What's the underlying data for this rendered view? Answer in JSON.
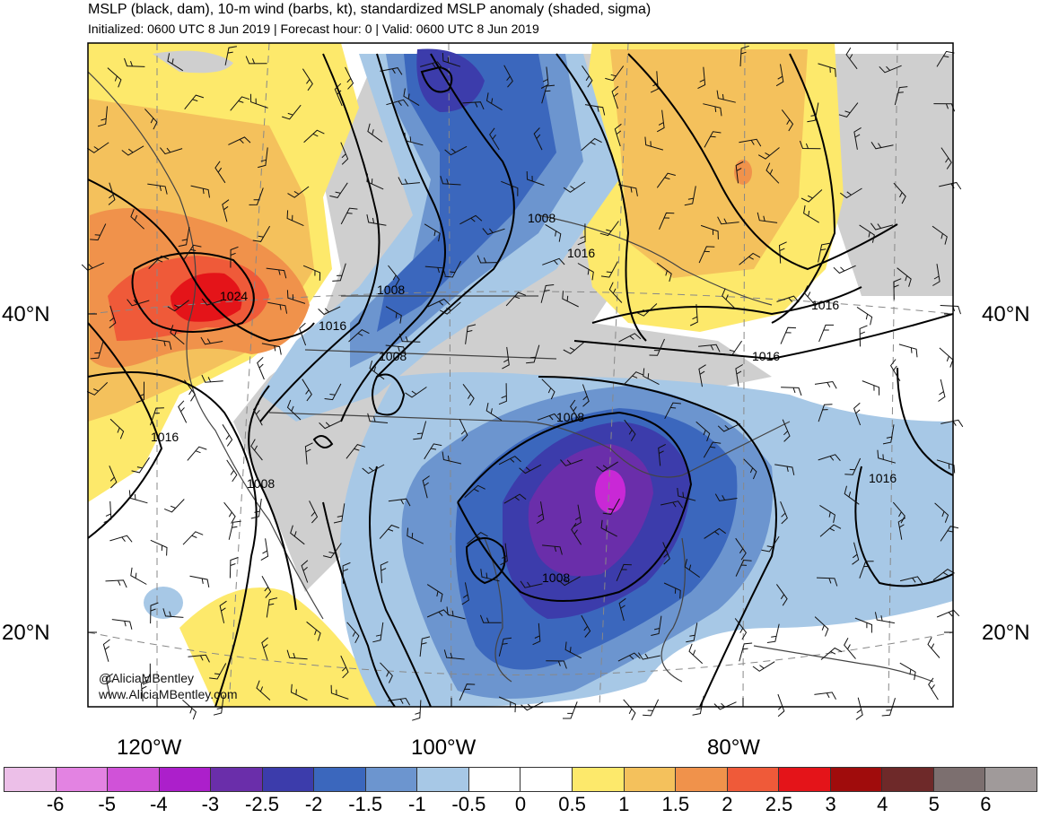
{
  "header": {
    "title": "MSLP (black, dam), 10-m wind (barbs, kt), standardized MSLP anomaly (shaded, sigma)",
    "subtitle": "Initialized: 0600 UTC 8 Jun 2019 | Forecast hour: 0 | Valid: 0600 UTC 8 Jun 2019"
  },
  "axes": {
    "lat_labels": [
      "40°N",
      "20°N"
    ],
    "lon_labels": [
      "120°W",
      "100°W",
      "80°W"
    ]
  },
  "isobar_labels": [
    {
      "text": "1024"
    },
    {
      "text": "1016"
    },
    {
      "text": "1008"
    },
    {
      "text": "1008"
    },
    {
      "text": "1016"
    },
    {
      "text": "1016"
    },
    {
      "text": "1016"
    },
    {
      "text": "1016"
    },
    {
      "text": "1008"
    },
    {
      "text": "1008"
    },
    {
      "text": "1008"
    },
    {
      "text": "1016"
    },
    {
      "text": "1008"
    }
  ],
  "credits": {
    "handle": "@AliciaMBentley",
    "website": "www.AliciaMBentley.com"
  },
  "colorbar": {
    "colors": [
      "#ecbfe8",
      "#e383e2",
      "#d052d8",
      "#ac1fcb",
      "#6a2eaa",
      "#3c3cab",
      "#3b67bd",
      "#6c95cf",
      "#a7c8e6",
      "#ffffff",
      "#ffffff",
      "#fde96b",
      "#f4c15c",
      "#f0924b",
      "#ef5a39",
      "#e41419",
      "#a00c0c",
      "#6e2929",
      "#7c6f6f",
      "#a09a9a"
    ],
    "ticks": [
      "-6",
      "-5",
      "-4",
      "-3",
      "-2.5",
      "-2",
      "-1.5",
      "-1",
      "-0.5",
      "0",
      "0.5",
      "1",
      "1.5",
      "2",
      "2.5",
      "3",
      "4",
      "5",
      "6"
    ]
  }
}
